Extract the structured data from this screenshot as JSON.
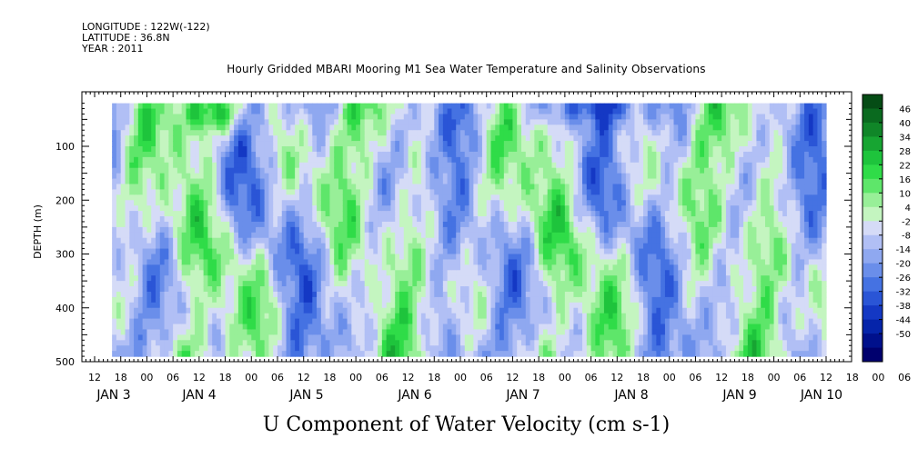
{
  "header": {
    "longitude": "LONGITUDE : 122W(-122)",
    "latitude": "LATITUDE : 36.8N",
    "year": "YEAR : 2011"
  },
  "chart_data": {
    "type": "heatmap",
    "title": "Hourly Gridded MBARI Mooring M1 Sea Water Temperature and Salinity Observations",
    "xlabel": "U Component of Water Velocity (cm s-1)",
    "ylabel": "DEPTH (m)",
    "y_axis": {
      "range": [
        0,
        500
      ],
      "reversed": true,
      "ticks": [
        100,
        200,
        300,
        400,
        500
      ],
      "data_range": [
        20,
        490
      ]
    },
    "x_axis": {
      "unit": "hour",
      "range_hours_from_jan3_00": [
        -20,
        160
      ],
      "data_start": "JAN 3 16:00",
      "data_end": "JAN 10 12:00",
      "hour_tick_labels": [
        "12",
        "18",
        "00",
        "06",
        "12",
        "18",
        "00",
        "06",
        "12",
        "18",
        "00",
        "06",
        "12",
        "18",
        "00",
        "06",
        "12",
        "18",
        "00",
        "06",
        "12",
        "18",
        "00",
        "06",
        "12",
        "18",
        "00",
        "06",
        "12",
        "18",
        "00",
        "06"
      ],
      "day_labels": [
        "JAN  3",
        "JAN  4",
        "JAN  5",
        "JAN  6",
        "JAN  7",
        "JAN  8",
        "JAN  9",
        "JAN 10"
      ]
    },
    "colorbar": {
      "levels": [
        -50,
        -44,
        -38,
        -32,
        -26,
        -20,
        -14,
        -8,
        -2,
        4,
        10,
        16,
        22,
        28,
        34,
        40,
        46
      ],
      "labels": [
        "46",
        "40",
        "34",
        "28",
        "22",
        "16",
        "10",
        "4",
        "-2",
        "-8",
        "-14",
        "-20",
        "-26",
        "-32",
        "-38",
        "-44",
        "-50"
      ],
      "colors_low_to_high": [
        "#00006e",
        "#00108c",
        "#0524aa",
        "#1438c4",
        "#2a55d6",
        "#4572e2",
        "#6a8eea",
        "#8fa8f0",
        "#b1bff5",
        "#d5dbf7",
        "#c4f5c0",
        "#98ef98",
        "#5ee66a",
        "#2fdc48",
        "#1ec43c",
        "#17a532",
        "#108628",
        "#0a6a1f",
        "#054c15"
      ]
    },
    "annotations": [
      {
        "text": "strong westward (blue) flow near surface around JAN 7 00-08",
        "shown": false
      }
    ]
  }
}
